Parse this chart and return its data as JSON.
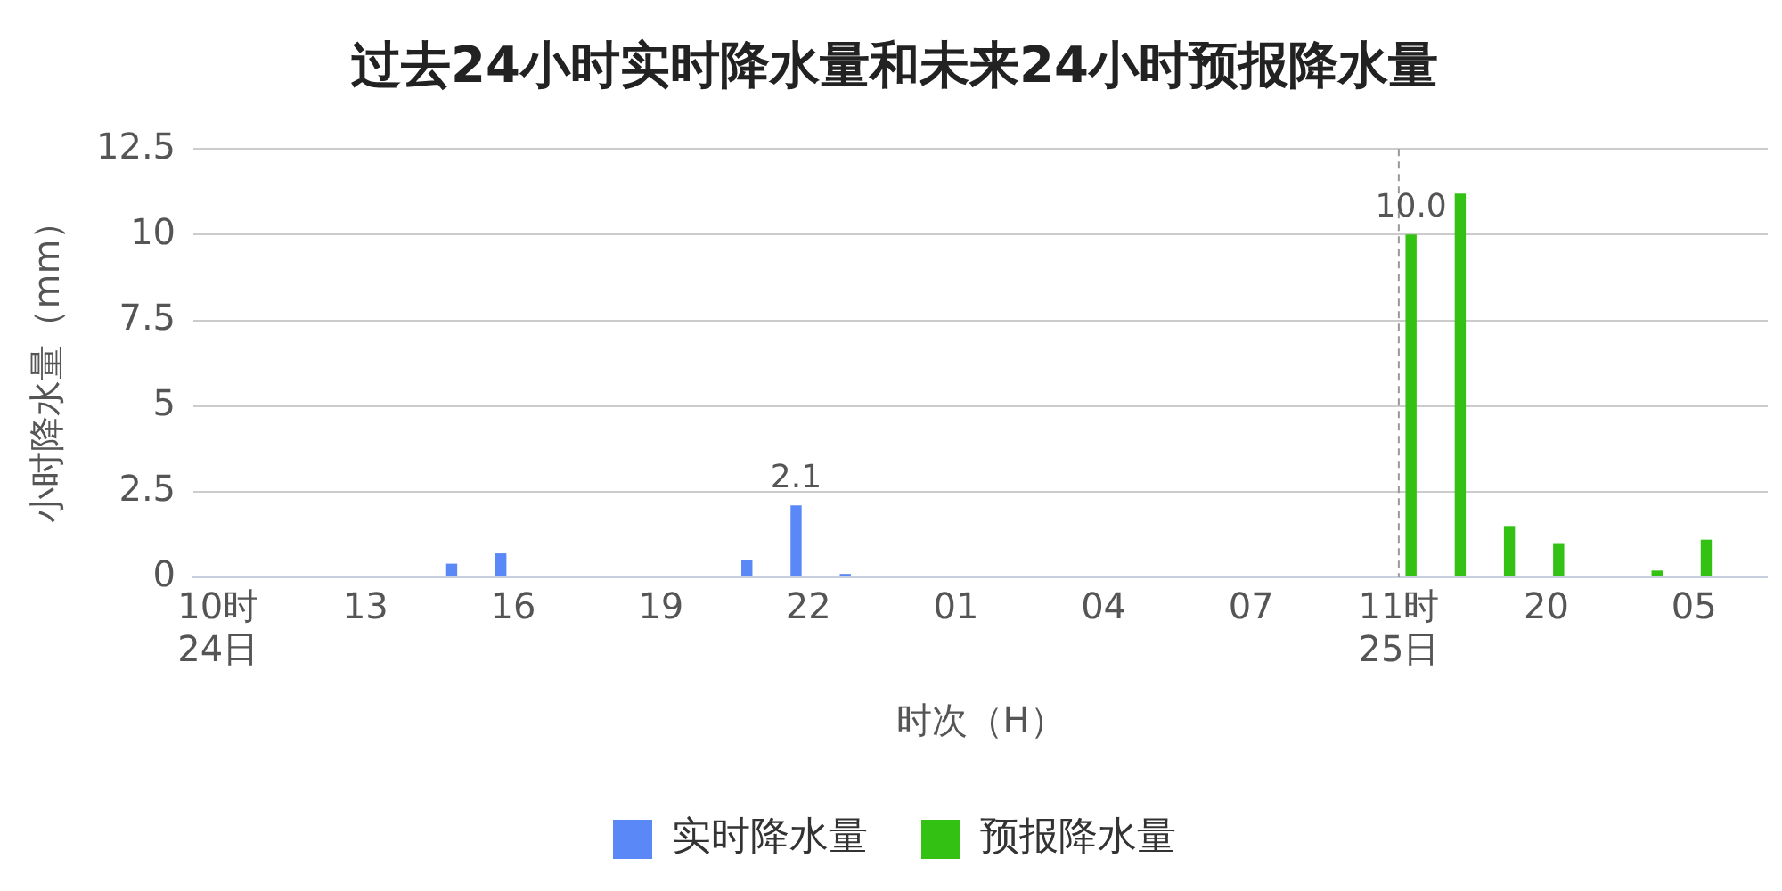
{
  "chart_data": {
    "type": "bar",
    "title": "过去24小时实时降水量和未来24小时预报降水量",
    "xlabel": "时次（H）",
    "ylabel": "小时降水量（mm）",
    "categories": [
      "10时\n24日",
      null,
      null,
      "13",
      null,
      null,
      "16",
      null,
      null,
      "19",
      null,
      null,
      "22",
      null,
      null,
      "01",
      null,
      null,
      "04",
      null,
      null,
      "07",
      null,
      null,
      "11时\n25日",
      null,
      null,
      "20",
      null,
      null,
      "05",
      null
    ],
    "series": [
      {
        "name": "实时降水量",
        "color": "#5b88f7",
        "values": [
          null,
          null,
          null,
          null,
          null,
          0.4,
          0.7,
          0.05,
          null,
          null,
          null,
          0.5,
          2.1,
          0.1,
          null,
          null,
          null,
          null,
          null,
          null,
          null,
          null,
          null,
          null,
          null,
          null,
          null,
          null,
          null,
          null,
          null,
          null
        ],
        "value_labels": [
          null,
          null,
          null,
          null,
          null,
          null,
          null,
          null,
          null,
          null,
          null,
          null,
          "2.1",
          null,
          null,
          null,
          null,
          null,
          null,
          null,
          null,
          null,
          null,
          null,
          null,
          null,
          null,
          null,
          null,
          null,
          null,
          null
        ]
      },
      {
        "name": "预报降水量",
        "color": "#33c214",
        "values": [
          null,
          null,
          null,
          null,
          null,
          null,
          null,
          null,
          null,
          null,
          null,
          null,
          null,
          null,
          null,
          null,
          null,
          null,
          null,
          null,
          null,
          null,
          null,
          null,
          10.0,
          11.2,
          1.5,
          1.0,
          null,
          0.2,
          1.1,
          0.05
        ],
        "value_labels": [
          null,
          null,
          null,
          null,
          null,
          null,
          null,
          null,
          null,
          null,
          null,
          null,
          null,
          null,
          null,
          null,
          null,
          null,
          null,
          null,
          null,
          null,
          null,
          null,
          "10.0",
          null,
          null,
          null,
          null,
          null,
          null,
          null
        ]
      }
    ],
    "ylim": [
      0,
      12.5
    ],
    "yticks": [
      0,
      2.5,
      5,
      7.5,
      10,
      12.5
    ],
    "grid": "y",
    "legend": "bottom",
    "ref_lines": [
      {
        "axis": "x",
        "value": "11时\n25日",
        "color": "#999999",
        "line_style": "dashed"
      }
    ]
  }
}
